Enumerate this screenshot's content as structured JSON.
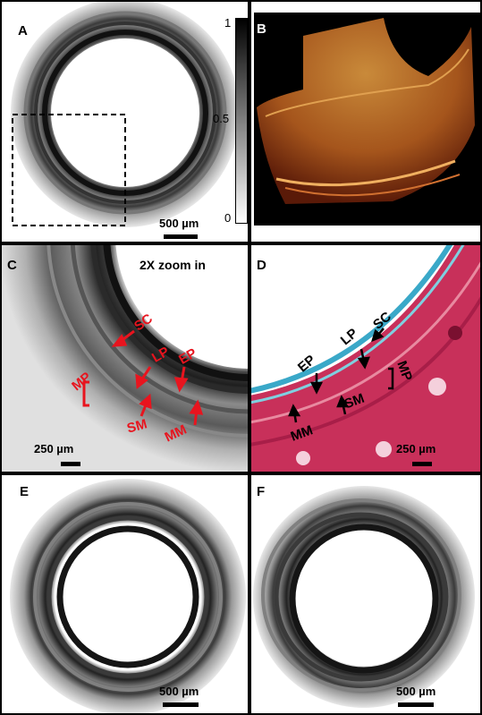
{
  "panels": {
    "a": {
      "letter": "A",
      "scale": "500 µm",
      "colorbar": {
        "max": "1",
        "mid": "0.5",
        "min": "0"
      }
    },
    "b": {
      "letter": "B"
    },
    "c": {
      "letter": "C",
      "zoom": "2X zoom in",
      "scale": "250 µm",
      "labels": {
        "sc": "SC",
        "lp": "LP",
        "ep": "EP",
        "mp": "MP",
        "sm": "SM",
        "mm": "MM"
      }
    },
    "d": {
      "letter": "D",
      "scale": "250 µm",
      "labels": {
        "sc": "SC",
        "lp": "LP",
        "ep": "EP",
        "mp": "MP",
        "sm": "SM",
        "mm": "MM"
      }
    },
    "e": {
      "letter": "E",
      "scale": "500 µm"
    },
    "f": {
      "letter": "F",
      "scale": "500 µm"
    }
  },
  "colors": {
    "annotation_red": "#e8141e",
    "histology_pink": "#c8305a",
    "collagen_blue": "#3aa8c8"
  }
}
